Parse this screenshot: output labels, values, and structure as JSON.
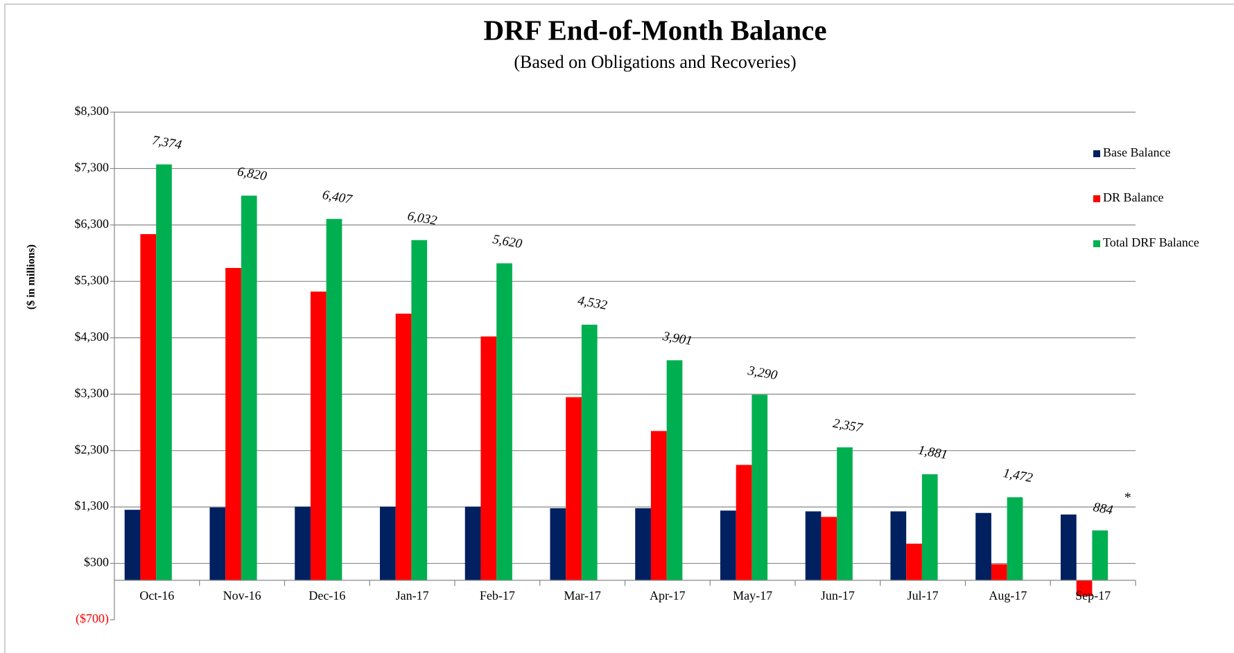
{
  "chart_data": {
    "type": "bar",
    "title": "DRF End-of-Month Balance",
    "subtitle": "(Based on Obligations and Recoveries)",
    "y_label": "($ in millions)",
    "categories": [
      "Oct-16",
      "Nov-16",
      "Dec-16",
      "Jan-17",
      "Feb-17",
      "Mar-17",
      "Apr-17",
      "May-17",
      "Jun-17",
      "Jul-17",
      "Aug-17",
      "Sep-17"
    ],
    "series": [
      {
        "name": "Base Balance",
        "color": "#002060",
        "values": [
          1250,
          1292,
          1306,
          1306,
          1306,
          1278,
          1278,
          1236,
          1222,
          1222,
          1194,
          1166
        ]
      },
      {
        "name": "DR Balance",
        "color": "#ff0000",
        "values": [
          6138,
          5538,
          5119,
          4728,
          4323,
          3247,
          2647,
          2046,
          1124,
          649,
          286,
          -280
        ]
      },
      {
        "name": "Total DRF Balance",
        "color": "#00b050",
        "values": [
          7374,
          6820,
          6407,
          6032,
          5620,
          4532,
          3901,
          3290,
          2357,
          1881,
          1472,
          884
        ],
        "value_labels": [
          "7,374",
          "6,820",
          "6,407",
          "6,032",
          "5,620",
          "4,532",
          "3,901",
          "3,290",
          "2,357",
          "1,881",
          "1,472",
          "884"
        ]
      }
    ],
    "annotations": [
      {
        "text": "*",
        "category": "Sep-17"
      }
    ],
    "ylim": [
      -700,
      8300
    ],
    "yticks": [
      {
        "value": -700,
        "label": "($700)"
      },
      {
        "value": 300,
        "label": "$300"
      },
      {
        "value": 1300,
        "label": "$1,300"
      },
      {
        "value": 2300,
        "label": "$2,300"
      },
      {
        "value": 3300,
        "label": "$3,300"
      },
      {
        "value": 4300,
        "label": "$4,300"
      },
      {
        "value": 5300,
        "label": "$5,300"
      },
      {
        "value": 6300,
        "label": "$6,300"
      },
      {
        "value": 7300,
        "label": "$7,300"
      },
      {
        "value": 8300,
        "label": "$8,300"
      }
    ],
    "grid": true,
    "legend": "right"
  }
}
